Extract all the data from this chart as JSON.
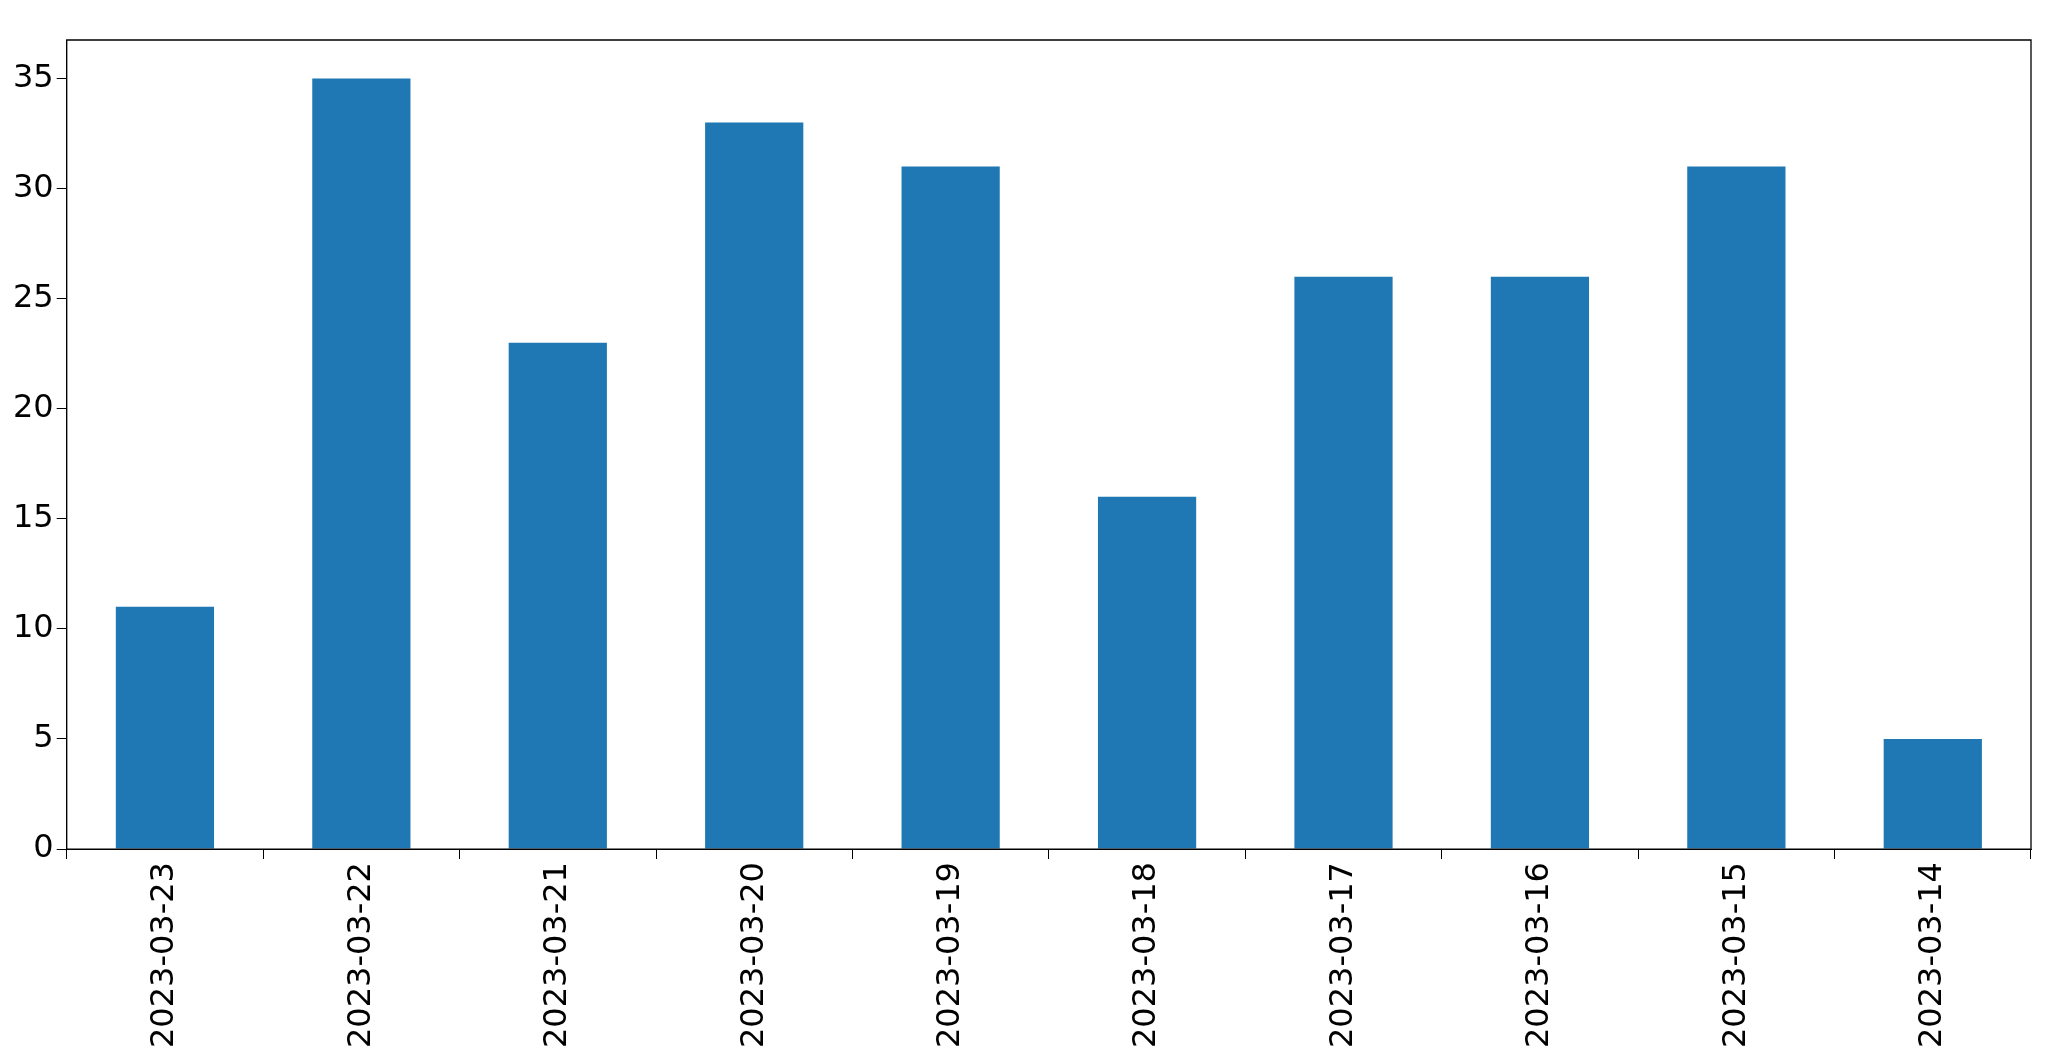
{
  "chart_data": {
    "type": "bar",
    "categories": [
      "2023-03-23",
      "2023-03-22",
      "2023-03-21",
      "2023-03-20",
      "2023-03-19",
      "2023-03-18",
      "2023-03-17",
      "2023-03-16",
      "2023-03-15",
      "2023-03-14"
    ],
    "values": [
      11,
      35,
      23,
      33,
      31,
      16,
      26,
      26,
      31,
      5
    ],
    "color": "#1f77b4",
    "ylim": [
      0,
      36.75
    ],
    "yticks": [
      0,
      5,
      10,
      15,
      20,
      25,
      30,
      35
    ],
    "grid": false,
    "legend": false
  }
}
